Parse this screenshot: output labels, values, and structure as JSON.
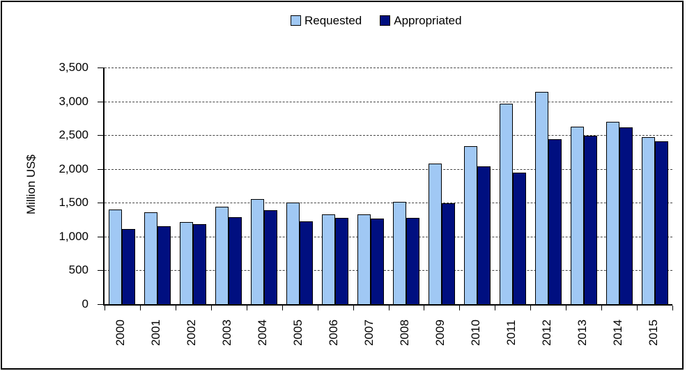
{
  "legend": {
    "position": "top-center"
  },
  "chart_data": {
    "type": "bar",
    "title": "",
    "xlabel": "",
    "ylabel": "Million US$",
    "ylim": [
      0,
      3500
    ],
    "ytick_interval": 500,
    "ytick_labels": [
      "0",
      "500",
      "1,000",
      "1,500",
      "2,000",
      "2,500",
      "3,000",
      "3,500"
    ],
    "grid": "horizontal-dashed",
    "legend_position": "top",
    "categories": [
      "2000",
      "2001",
      "2002",
      "2003",
      "2004",
      "2005",
      "2006",
      "2007",
      "2008",
      "2009",
      "2010",
      "2011",
      "2012",
      "2013",
      "2014",
      "2015"
    ],
    "series": [
      {
        "name": "Requested",
        "color": "#A0C8F4",
        "values": [
          1400,
          1360,
          1210,
          1440,
          1550,
          1500,
          1330,
          1330,
          1510,
          2080,
          2340,
          2960,
          3140,
          2620,
          2700,
          2470
        ]
      },
      {
        "name": "Appropriated",
        "color": "#000F80",
        "values": [
          1110,
          1150,
          1180,
          1290,
          1390,
          1220,
          1280,
          1270,
          1280,
          1490,
          2040,
          1950,
          2440,
          2490,
          2610,
          2410
        ]
      }
    ]
  }
}
